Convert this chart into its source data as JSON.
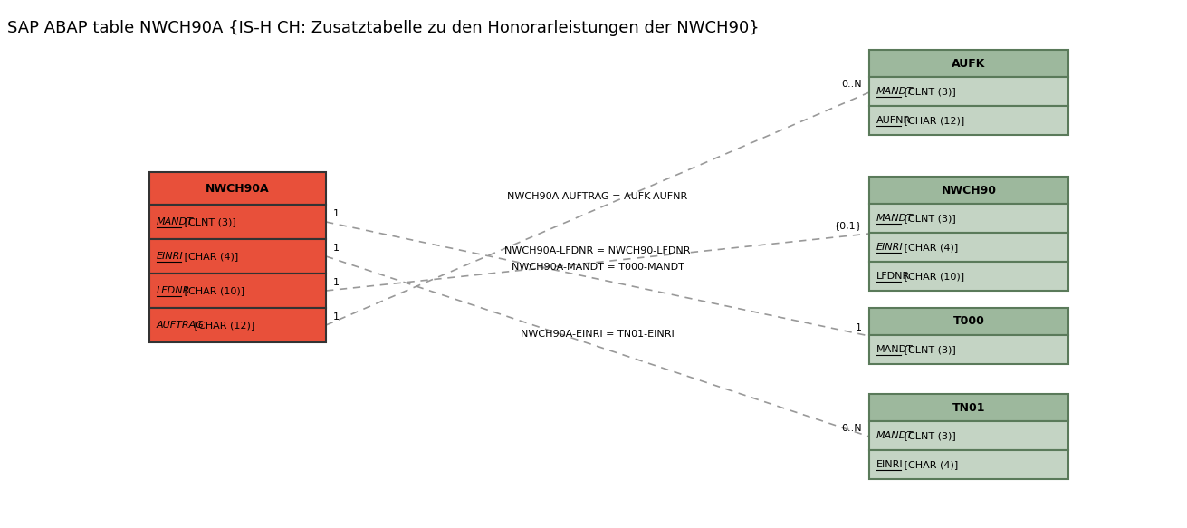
{
  "title": "SAP ABAP table NWCH90A {IS-H CH: Zusatztabelle zu den Honorarleistungen der NWCH90}",
  "title_fontsize": 13,
  "bg_color": "#ffffff",
  "main_table": {
    "name": "NWCH90A",
    "header_color": "#e8503a",
    "row_color": "#e8503a",
    "border_color": "#333333",
    "fields": [
      {
        "name": "MANDT",
        "type": " [CLNT (3)]",
        "italic": true,
        "underline": true
      },
      {
        "name": "EINRI",
        "type": " [CHAR (4)]",
        "italic": true,
        "underline": true
      },
      {
        "name": "LFDNR",
        "type": " [CHAR (10)]",
        "italic": true,
        "underline": true
      },
      {
        "name": "AUFTRAG",
        "type": " [CHAR (12)]",
        "italic": true,
        "underline": false
      }
    ]
  },
  "ref_tables": [
    {
      "name": "AUFK",
      "header_color": "#9db89d",
      "row_color": "#c4d4c4",
      "border_color": "#5a7a5a",
      "fields": [
        {
          "name": "MANDT",
          "type": " [CLNT (3)]",
          "italic": true,
          "underline": true
        },
        {
          "name": "AUFNR",
          "type": " [CHAR (12)]",
          "italic": false,
          "underline": true
        }
      ]
    },
    {
      "name": "NWCH90",
      "header_color": "#9db89d",
      "row_color": "#c4d4c4",
      "border_color": "#5a7a5a",
      "fields": [
        {
          "name": "MANDT",
          "type": " [CLNT (3)]",
          "italic": true,
          "underline": true
        },
        {
          "name": "EINRI",
          "type": " [CHAR (4)]",
          "italic": true,
          "underline": true
        },
        {
          "name": "LFDNR",
          "type": " [CHAR (10)]",
          "italic": false,
          "underline": true
        }
      ]
    },
    {
      "name": "T000",
      "header_color": "#9db89d",
      "row_color": "#c4d4c4",
      "border_color": "#5a7a5a",
      "fields": [
        {
          "name": "MANDT",
          "type": " [CLNT (3)]",
          "italic": false,
          "underline": true
        }
      ]
    },
    {
      "name": "TN01",
      "header_color": "#9db89d",
      "row_color": "#c4d4c4",
      "border_color": "#5a7a5a",
      "fields": [
        {
          "name": "MANDT",
          "type": " [CLNT (3)]",
          "italic": true,
          "underline": false
        },
        {
          "name": "EINRI",
          "type": " [CHAR (4)]",
          "italic": false,
          "underline": true
        }
      ]
    }
  ],
  "relationships": [
    {
      "label": "NWCH90A-AUFTRAG = AUFK-AUFNR",
      "from_field_idx": 3,
      "to_table_idx": 0,
      "from_mult": "1",
      "to_mult": "0..N"
    },
    {
      "label": "NWCH90A-LFDNR = NWCH90-LFDNR",
      "from_field_idx": 2,
      "to_table_idx": 1,
      "from_mult": "1",
      "to_mult": "{0,1}"
    },
    {
      "label": "NWCH90A-MANDT = T000-MANDT",
      "from_field_idx": 0,
      "to_table_idx": 2,
      "from_mult": "1",
      "to_mult": "1"
    },
    {
      "label": "NWCH90A-EINRI = TN01-EINRI",
      "from_field_idx": 1,
      "to_table_idx": 3,
      "from_mult": "1",
      "to_mult": "0..N"
    }
  ],
  "dash_color": "#999999",
  "line_width": 1.2
}
